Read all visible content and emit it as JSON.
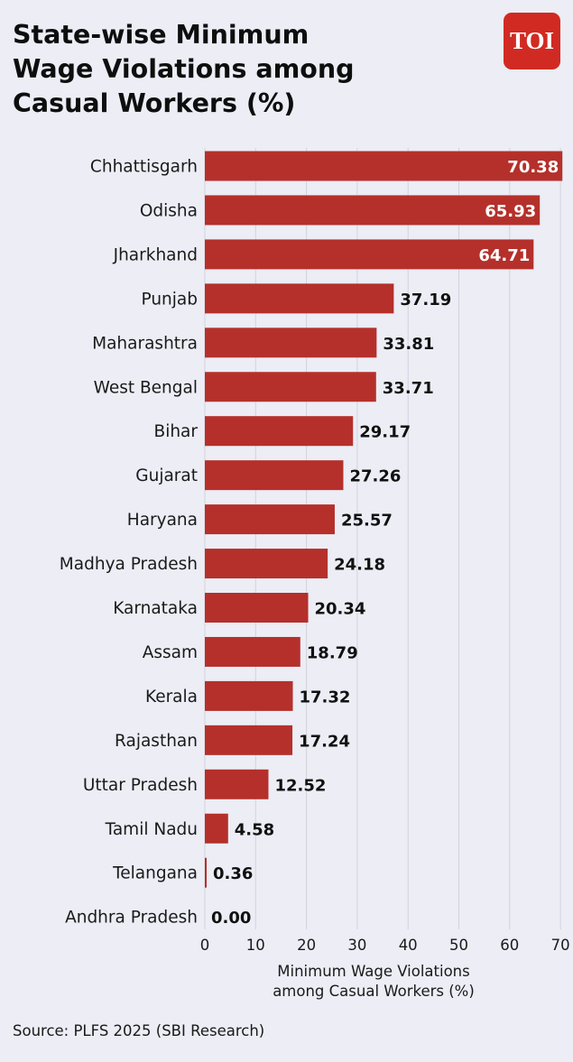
{
  "header": {
    "title": "State-wise Minimum\nWage Violations among\nCasual Workers (%)",
    "logo_text": "TOI"
  },
  "footer": {
    "source": "Source: PLFS 2025 (SBI Research)"
  },
  "colors": {
    "background": "#ecedf5",
    "bar": "#b5302b",
    "logo": "#d12a22",
    "grid": "#d2d3dc",
    "inside_label": "#ffffff",
    "outside_label": "#111111"
  },
  "chart_data": {
    "type": "bar",
    "orientation": "horizontal",
    "categories": [
      "Chhattisgarh",
      "Odisha",
      "Jharkhand",
      "Punjab",
      "Maharashtra",
      "West Bengal",
      "Bihar",
      "Gujarat",
      "Haryana",
      "Madhya Pradesh",
      "Karnataka",
      "Assam",
      "Kerala",
      "Rajasthan",
      "Uttar Pradesh",
      "Tamil Nadu",
      "Telangana",
      "Andhra Pradesh"
    ],
    "values": [
      70.38,
      65.93,
      64.71,
      37.19,
      33.81,
      33.71,
      29.17,
      27.26,
      25.57,
      24.18,
      20.34,
      18.79,
      17.32,
      17.24,
      12.52,
      4.58,
      0.36,
      0.0
    ],
    "value_labels": [
      "70.38",
      "65.93",
      "64.71",
      "37.19",
      "33.81",
      "33.71",
      "29.17",
      "27.26",
      "25.57",
      "24.18",
      "20.34",
      "18.79",
      "17.32",
      "17.24",
      "12.52",
      "4.58",
      "0.36",
      "0.00"
    ],
    "xlabel": "Minimum Wage Violations\namong Casual Workers (%)",
    "xlim": [
      0,
      70
    ],
    "xticks": [
      0,
      10,
      20,
      30,
      40,
      50,
      60,
      70
    ],
    "grid": true,
    "legend": "none"
  }
}
